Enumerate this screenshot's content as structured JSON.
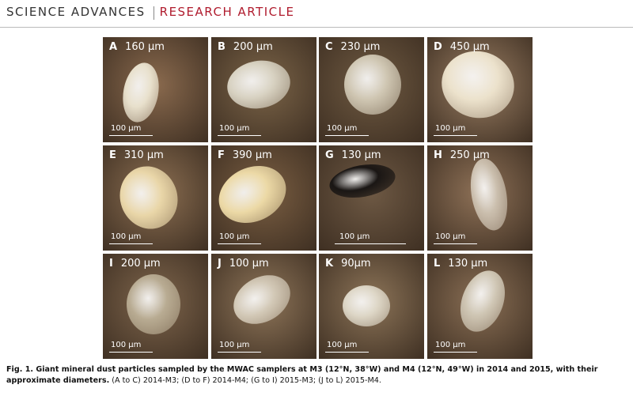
{
  "header": {
    "journal": "SCIENCE ADVANCES",
    "section": "RESEARCH ARTICLE"
  },
  "figure": {
    "panels": [
      {
        "letter": "A",
        "size": "160 µm",
        "scale": "100 µm"
      },
      {
        "letter": "B",
        "size": "200 µm",
        "scale": "100 µm"
      },
      {
        "letter": "C",
        "size": "230 µm",
        "scale": "100 µm"
      },
      {
        "letter": "D",
        "size": "450 µm",
        "scale": "100 µm"
      },
      {
        "letter": "E",
        "size": "310 µm",
        "scale": "100 µm"
      },
      {
        "letter": "F",
        "size": "390 µm",
        "scale": "100 µm"
      },
      {
        "letter": "G",
        "size": "130 µm",
        "scale": "100 µm"
      },
      {
        "letter": "H",
        "size": "250 µm",
        "scale": "100 µm"
      },
      {
        "letter": "I",
        "size": "200 µm",
        "scale": "100 µm"
      },
      {
        "letter": "J",
        "size": "100 µm",
        "scale": "100 µm"
      },
      {
        "letter": "K",
        "size": "90µm",
        "scale": "100 µm"
      },
      {
        "letter": "L",
        "size": "130 µm",
        "scale": "100 µm"
      }
    ],
    "caption": {
      "title": "Fig. 1. Giant mineral dust particles sampled by the MWAC samplers at M3 (12°N, 38°W) and M4 (12°N, 49°W) in 2014 and 2015, with their approximate diameters.",
      "detail": "(A to C) 2014-M3; (D to F) 2014-M4; (G to I) 2015-M3; (J to L) 2015-M4."
    }
  }
}
